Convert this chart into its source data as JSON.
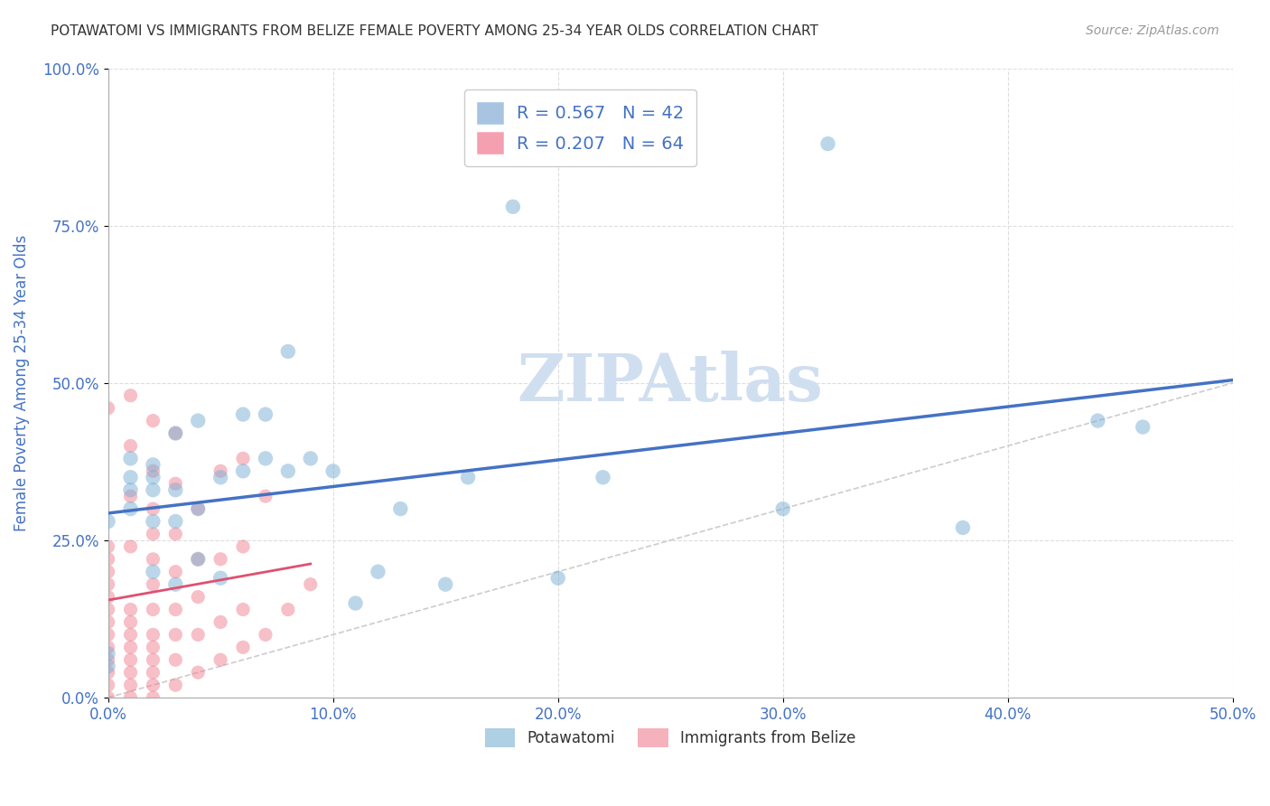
{
  "title": "POTAWATOMI VS IMMIGRANTS FROM BELIZE FEMALE POVERTY AMONG 25-34 YEAR OLDS CORRELATION CHART",
  "source": "Source: ZipAtlas.com",
  "xlabel_ticks": [
    "0.0%",
    "10.0%",
    "20.0%",
    "30.0%",
    "40.0%",
    "50.0%"
  ],
  "xlabel_vals": [
    0,
    0.1,
    0.2,
    0.3,
    0.4,
    0.5
  ],
  "ylabel": "Female Poverty Among 25-34 Year Olds",
  "ylabel_ticks": [
    "0.0%",
    "25.0%",
    "50.0%",
    "75.0%",
    "100.0%"
  ],
  "ylabel_vals": [
    0,
    0.25,
    0.5,
    0.75,
    1.0
  ],
  "xlim": [
    0,
    0.5
  ],
  "ylim": [
    0,
    1.0
  ],
  "legend1_label": "R = 0.567   N = 42",
  "legend2_label": "R = 0.207   N = 64",
  "legend1_color": "#a8c4e0",
  "legend2_color": "#f4a0b0",
  "scatter_blue_color": "#7bafd4",
  "scatter_pink_color": "#f08090",
  "regression_blue_color": "#4472c4",
  "regression_pink_color": "#e05070",
  "diagonal_color": "#cccccc",
  "grid_color": "#dddddd",
  "title_color": "#333333",
  "source_color": "#888888",
  "axis_label_color": "#4472c4",
  "tick_label_color": "#4472c4",
  "watermark_color": "#d0dff0",
  "potawatomi_x": [
    0.0,
    0.0,
    0.0,
    0.01,
    0.01,
    0.01,
    0.01,
    0.02,
    0.02,
    0.02,
    0.02,
    0.02,
    0.03,
    0.03,
    0.03,
    0.03,
    0.04,
    0.04,
    0.04,
    0.05,
    0.05,
    0.06,
    0.06,
    0.07,
    0.07,
    0.08,
    0.08,
    0.09,
    0.1,
    0.11,
    0.12,
    0.13,
    0.15,
    0.16,
    0.18,
    0.2,
    0.22,
    0.3,
    0.32,
    0.38,
    0.44,
    0.46
  ],
  "potawatomi_y": [
    0.05,
    0.07,
    0.28,
    0.3,
    0.33,
    0.35,
    0.38,
    0.2,
    0.28,
    0.33,
    0.35,
    0.37,
    0.18,
    0.28,
    0.33,
    0.42,
    0.22,
    0.3,
    0.44,
    0.19,
    0.35,
    0.36,
    0.45,
    0.38,
    0.45,
    0.36,
    0.55,
    0.38,
    0.36,
    0.15,
    0.2,
    0.3,
    0.18,
    0.35,
    0.78,
    0.19,
    0.35,
    0.3,
    0.88,
    0.27,
    0.44,
    0.43
  ],
  "belize_x": [
    0.0,
    0.0,
    0.0,
    0.0,
    0.0,
    0.0,
    0.0,
    0.0,
    0.0,
    0.0,
    0.0,
    0.0,
    0.0,
    0.0,
    0.01,
    0.01,
    0.01,
    0.01,
    0.01,
    0.01,
    0.01,
    0.01,
    0.01,
    0.01,
    0.01,
    0.01,
    0.02,
    0.02,
    0.02,
    0.02,
    0.02,
    0.02,
    0.02,
    0.02,
    0.02,
    0.02,
    0.02,
    0.02,
    0.02,
    0.03,
    0.03,
    0.03,
    0.03,
    0.03,
    0.03,
    0.03,
    0.03,
    0.04,
    0.04,
    0.04,
    0.04,
    0.04,
    0.05,
    0.05,
    0.05,
    0.05,
    0.06,
    0.06,
    0.06,
    0.06,
    0.07,
    0.07,
    0.08,
    0.09
  ],
  "belize_y": [
    0.0,
    0.02,
    0.04,
    0.06,
    0.08,
    0.1,
    0.12,
    0.14,
    0.16,
    0.18,
    0.2,
    0.22,
    0.24,
    0.46,
    0.0,
    0.02,
    0.04,
    0.06,
    0.08,
    0.1,
    0.12,
    0.14,
    0.24,
    0.32,
    0.4,
    0.48,
    0.0,
    0.02,
    0.04,
    0.06,
    0.08,
    0.1,
    0.14,
    0.18,
    0.22,
    0.26,
    0.3,
    0.36,
    0.44,
    0.02,
    0.06,
    0.1,
    0.14,
    0.2,
    0.26,
    0.34,
    0.42,
    0.04,
    0.1,
    0.16,
    0.22,
    0.3,
    0.06,
    0.12,
    0.22,
    0.36,
    0.08,
    0.14,
    0.24,
    0.38,
    0.1,
    0.32,
    0.14,
    0.18
  ]
}
